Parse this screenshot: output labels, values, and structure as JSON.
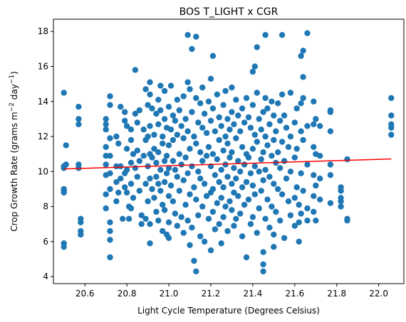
{
  "chart_data": {
    "type": "scatter",
    "title": "BOS T_LIGHT x CGR",
    "xlabel": "Light Cycle Temperature (Degrees Celsius)",
    "ylabel_main": "Crop Growth Rate (grams m",
    "ylabel_sup1": "−2",
    "ylabel_mid": " day",
    "ylabel_sup2": "−1",
    "ylabel_end": ")",
    "xlim": [
      20.45,
      22.12
    ],
    "ylim": [
      3.6,
      18.7
    ],
    "xticks": [
      20.6,
      20.8,
      21.0,
      21.2,
      21.4,
      21.6,
      21.8,
      22.0
    ],
    "xtick_labels": [
      "20.6",
      "20.8",
      "21.0",
      "21.2",
      "21.4",
      "21.6",
      "21.8",
      "22.0"
    ],
    "yticks": [
      4,
      6,
      8,
      10,
      12,
      14,
      16,
      18
    ],
    "ytick_labels": [
      "4",
      "6",
      "8",
      "10",
      "12",
      "14",
      "16",
      "18"
    ],
    "grid": false,
    "point_color": "#1f77b4",
    "trend_color": "#ff0000",
    "trend_line": {
      "x": [
        20.5,
        22.06
      ],
      "y": [
        10.15,
        10.72
      ]
    },
    "points": [
      [
        20.5,
        14.5
      ],
      [
        20.5,
        10.3
      ],
      [
        20.5,
        10.2
      ],
      [
        20.5,
        9.0
      ],
      [
        20.5,
        8.9
      ],
      [
        20.5,
        8.8
      ],
      [
        20.5,
        5.9
      ],
      [
        20.5,
        5.7
      ],
      [
        20.51,
        11.5
      ],
      [
        20.51,
        10.4
      ],
      [
        20.57,
        13.7
      ],
      [
        20.57,
        13.0
      ],
      [
        20.57,
        12.7
      ],
      [
        20.57,
        10.4
      ],
      [
        20.57,
        10.2
      ],
      [
        20.58,
        7.3
      ],
      [
        20.58,
        7.1
      ],
      [
        20.58,
        6.6
      ],
      [
        20.58,
        6.4
      ],
      [
        20.7,
        13.0
      ],
      [
        20.7,
        12.7
      ],
      [
        20.7,
        12.4
      ],
      [
        20.7,
        11.4
      ],
      [
        20.7,
        10.9
      ],
      [
        20.7,
        10.4
      ],
      [
        20.7,
        9.8
      ],
      [
        20.7,
        8.7
      ],
      [
        20.7,
        7.9
      ],
      [
        20.72,
        14.3
      ],
      [
        20.72,
        13.8
      ],
      [
        20.72,
        11.9
      ],
      [
        20.72,
        10.9
      ],
      [
        20.72,
        9.9
      ],
      [
        20.72,
        9.0
      ],
      [
        20.72,
        7.1
      ],
      [
        20.72,
        6.6
      ],
      [
        20.72,
        6.1
      ],
      [
        20.72,
        5.1
      ],
      [
        20.75,
        12.0
      ],
      [
        20.75,
        10.3
      ],
      [
        20.75,
        9.4
      ],
      [
        20.75,
        8.3
      ],
      [
        20.76,
        8.8
      ],
      [
        20.76,
        11.6
      ],
      [
        20.77,
        13.7
      ],
      [
        20.77,
        10.3
      ],
      [
        20.77,
        9.6
      ],
      [
        20.78,
        7.3
      ],
      [
        20.79,
        13.4
      ],
      [
        20.79,
        12.9
      ],
      [
        20.79,
        9.9
      ],
      [
        20.79,
        9.1
      ],
      [
        20.8,
        12.6
      ],
      [
        20.8,
        11.3
      ],
      [
        20.8,
        10.1
      ],
      [
        20.8,
        8.8
      ],
      [
        20.81,
        8.0
      ],
      [
        20.81,
        7.3
      ],
      [
        20.82,
        12.4
      ],
      [
        20.82,
        11.8
      ],
      [
        20.82,
        10.5
      ],
      [
        20.82,
        9.3
      ],
      [
        20.82,
        7.9
      ],
      [
        20.83,
        11.0
      ],
      [
        20.83,
        8.5
      ],
      [
        20.84,
        15.8
      ],
      [
        20.84,
        13.3
      ],
      [
        20.84,
        10.2
      ],
      [
        20.85,
        12.8
      ],
      [
        20.85,
        11.2
      ],
      [
        20.85,
        9.7
      ],
      [
        20.86,
        13.5
      ],
      [
        20.86,
        10.6
      ],
      [
        20.86,
        8.9
      ],
      [
        20.87,
        7.5
      ],
      [
        20.87,
        7.0
      ],
      [
        20.88,
        12.4
      ],
      [
        20.88,
        10.9
      ],
      [
        20.89,
        14.7
      ],
      [
        20.89,
        11.8
      ],
      [
        20.89,
        9.3
      ],
      [
        20.89,
        7.3
      ],
      [
        20.9,
        13.8
      ],
      [
        20.9,
        12.0
      ],
      [
        20.9,
        10.3
      ],
      [
        20.9,
        8.3
      ],
      [
        20.91,
        15.1
      ],
      [
        20.91,
        14.4
      ],
      [
        20.91,
        12.6
      ],
      [
        20.91,
        11.0
      ],
      [
        20.91,
        9.6
      ],
      [
        20.91,
        7.0
      ],
      [
        20.91,
        5.9
      ],
      [
        20.92,
        13.6
      ],
      [
        20.92,
        10.8
      ],
      [
        20.92,
        9.0
      ],
      [
        20.93,
        12.1
      ],
      [
        20.93,
        11.3
      ],
      [
        20.93,
        8.5
      ],
      [
        20.94,
        13.3
      ],
      [
        20.94,
        10.5
      ],
      [
        20.94,
        9.7
      ],
      [
        20.94,
        7.7
      ],
      [
        20.95,
        14.1
      ],
      [
        20.95,
        12.7
      ],
      [
        20.95,
        11.1
      ],
      [
        20.95,
        9.3
      ],
      [
        20.95,
        7.2
      ],
      [
        20.96,
        14.9
      ],
      [
        20.96,
        13.5
      ],
      [
        20.96,
        10.1
      ],
      [
        20.96,
        8.9
      ],
      [
        20.97,
        12.0
      ],
      [
        20.97,
        11.6
      ],
      [
        20.97,
        8.1
      ],
      [
        20.97,
        6.6
      ],
      [
        20.98,
        14.6
      ],
      [
        20.98,
        13.0
      ],
      [
        20.98,
        10.6
      ],
      [
        20.98,
        9.4
      ],
      [
        20.98,
        7.8
      ],
      [
        20.99,
        12.5
      ],
      [
        20.99,
        10.9
      ],
      [
        20.99,
        9.9
      ],
      [
        20.99,
        6.4
      ],
      [
        21.0,
        13.7
      ],
      [
        21.0,
        11.5
      ],
      [
        21.0,
        10.2
      ],
      [
        21.0,
        8.6
      ],
      [
        21.0,
        7.1
      ],
      [
        21.0,
        6.2
      ],
      [
        21.01,
        14.9
      ],
      [
        21.01,
        12.4
      ],
      [
        21.01,
        9.2
      ],
      [
        21.02,
        13.2
      ],
      [
        21.02,
        11.8
      ],
      [
        21.02,
        10.6
      ],
      [
        21.02,
        8.3
      ],
      [
        21.03,
        12.9
      ],
      [
        21.03,
        10.1
      ],
      [
        21.03,
        7.6
      ],
      [
        21.04,
        14.1
      ],
      [
        21.04,
        12.1
      ],
      [
        21.04,
        9.7
      ],
      [
        21.04,
        6.9
      ],
      [
        21.05,
        13.5
      ],
      [
        21.05,
        11.0
      ],
      [
        21.05,
        8.9
      ],
      [
        21.06,
        12.6
      ],
      [
        21.06,
        10.4
      ],
      [
        21.06,
        7.4
      ],
      [
        21.07,
        14.3
      ],
      [
        21.07,
        11.9
      ],
      [
        21.07,
        9.5
      ],
      [
        21.07,
        6.5
      ],
      [
        21.08,
        13.0
      ],
      [
        21.08,
        10.8
      ],
      [
        21.08,
        8.1
      ],
      [
        21.09,
        17.8
      ],
      [
        21.09,
        15.1
      ],
      [
        21.09,
        12.3
      ],
      [
        21.09,
        9.9
      ],
      [
        21.09,
        7.2
      ],
      [
        21.1,
        14.7
      ],
      [
        21.1,
        11.3
      ],
      [
        21.1,
        8.7
      ],
      [
        21.1,
        5.8
      ],
      [
        21.11,
        17.0
      ],
      [
        21.11,
        13.4
      ],
      [
        21.11,
        10.3
      ],
      [
        21.11,
        6.8
      ],
      [
        21.12,
        12.0
      ],
      [
        21.12,
        9.1
      ],
      [
        21.12,
        4.9
      ],
      [
        21.13,
        17.7
      ],
      [
        21.13,
        14.2
      ],
      [
        21.13,
        11.6
      ],
      [
        21.13,
        8.4
      ],
      [
        21.13,
        4.3
      ],
      [
        21.14,
        12.8
      ],
      [
        21.14,
        10.0
      ],
      [
        21.14,
        7.5
      ],
      [
        21.15,
        13.9
      ],
      [
        21.15,
        11.1
      ],
      [
        21.15,
        9.6
      ],
      [
        21.15,
        6.3
      ],
      [
        21.16,
        14.8
      ],
      [
        21.16,
        12.5
      ],
      [
        21.16,
        10.6
      ],
      [
        21.16,
        8.0
      ],
      [
        21.17,
        13.3
      ],
      [
        21.17,
        9.3
      ],
      [
        21.17,
        6.0
      ],
      [
        21.18,
        12.2
      ],
      [
        21.18,
        10.9
      ],
      [
        21.18,
        8.6
      ],
      [
        21.19,
        14.0
      ],
      [
        21.19,
        11.4
      ],
      [
        21.19,
        7.3
      ],
      [
        21.2,
        15.3
      ],
      [
        21.2,
        12.9
      ],
      [
        21.2,
        10.3
      ],
      [
        21.2,
        8.8
      ],
      [
        21.2,
        5.5
      ],
      [
        21.21,
        16.6
      ],
      [
        21.21,
        13.6
      ],
      [
        21.21,
        11.0
      ],
      [
        21.21,
        9.0
      ],
      [
        21.21,
        7.7
      ],
      [
        21.22,
        12.3
      ],
      [
        21.22,
        9.8
      ],
      [
        21.22,
        6.7
      ],
      [
        21.23,
        14.4
      ],
      [
        21.23,
        10.7
      ],
      [
        21.23,
        8.2
      ],
      [
        21.24,
        13.1
      ],
      [
        21.24,
        11.8
      ],
      [
        21.24,
        9.4
      ],
      [
        21.24,
        7.0
      ],
      [
        21.25,
        12.6
      ],
      [
        21.25,
        10.1
      ],
      [
        21.25,
        8.5
      ],
      [
        21.25,
        5.9
      ],
      [
        21.26,
        13.8
      ],
      [
        21.26,
        11.2
      ],
      [
        21.26,
        9.1
      ],
      [
        21.26,
        7.4
      ],
      [
        21.27,
        14.6
      ],
      [
        21.27,
        12.0
      ],
      [
        21.27,
        10.4
      ],
      [
        21.27,
        8.0
      ],
      [
        21.28,
        13.0
      ],
      [
        21.28,
        11.6
      ],
      [
        21.28,
        9.7
      ],
      [
        21.28,
        6.6
      ],
      [
        21.29,
        12.4
      ],
      [
        21.29,
        10.8
      ],
      [
        21.29,
        8.3
      ],
      [
        21.3,
        14.8
      ],
      [
        21.3,
        13.4
      ],
      [
        21.3,
        11.1
      ],
      [
        21.3,
        9.3
      ],
      [
        21.3,
        7.8
      ],
      [
        21.31,
        12.7
      ],
      [
        21.31,
        10.2
      ],
      [
        21.31,
        8.8
      ],
      [
        21.31,
        6.9
      ],
      [
        21.32,
        14.1
      ],
      [
        21.32,
        11.9
      ],
      [
        21.32,
        9.6
      ],
      [
        21.32,
        7.3
      ],
      [
        21.33,
        13.2
      ],
      [
        21.33,
        10.6
      ],
      [
        21.33,
        8.6
      ],
      [
        21.34,
        12.3
      ],
      [
        21.34,
        10.0
      ],
      [
        21.34,
        7.6
      ],
      [
        21.35,
        13.6
      ],
      [
        21.35,
        11.4
      ],
      [
        21.35,
        9.1
      ],
      [
        21.35,
        6.3
      ],
      [
        21.36,
        12.8
      ],
      [
        21.36,
        10.4
      ],
      [
        21.36,
        8.1
      ],
      [
        21.37,
        14.2
      ],
      [
        21.37,
        11.0
      ],
      [
        21.37,
        9.4
      ],
      [
        21.37,
        5.1
      ],
      [
        21.38,
        13.1
      ],
      [
        21.38,
        10.8
      ],
      [
        21.38,
        8.4
      ],
      [
        21.39,
        12.5
      ],
      [
        21.39,
        9.9
      ],
      [
        21.39,
        7.0
      ],
      [
        21.4,
        15.7
      ],
      [
        21.4,
        13.8
      ],
      [
        21.4,
        11.3
      ],
      [
        21.4,
        9.2
      ],
      [
        21.4,
        7.4
      ],
      [
        21.41,
        16.0
      ],
      [
        21.41,
        12.1
      ],
      [
        21.41,
        10.3
      ],
      [
        21.41,
        8.7
      ],
      [
        21.42,
        17.1
      ],
      [
        21.42,
        14.5
      ],
      [
        21.42,
        11.7
      ],
      [
        21.42,
        6.5
      ],
      [
        21.43,
        13.0
      ],
      [
        21.43,
        10.0
      ],
      [
        21.43,
        7.9
      ],
      [
        21.44,
        12.4
      ],
      [
        21.44,
        10.7
      ],
      [
        21.44,
        8.9
      ],
      [
        21.45,
        13.4
      ],
      [
        21.45,
        11.1
      ],
      [
        21.45,
        9.5
      ],
      [
        21.45,
        5.4
      ],
      [
        21.45,
        4.7
      ],
      [
        21.45,
        4.3
      ],
      [
        21.46,
        17.8
      ],
      [
        21.46,
        14.2
      ],
      [
        21.46,
        12.0
      ],
      [
        21.46,
        10.1
      ],
      [
        21.46,
        7.3
      ],
      [
        21.47,
        13.6
      ],
      [
        21.47,
        11.5
      ],
      [
        21.47,
        8.4
      ],
      [
        21.48,
        12.7
      ],
      [
        21.48,
        9.7
      ],
      [
        21.48,
        6.8
      ],
      [
        21.49,
        14.0
      ],
      [
        21.49,
        10.9
      ],
      [
        21.49,
        8.0
      ],
      [
        21.5,
        13.2
      ],
      [
        21.5,
        11.8
      ],
      [
        21.5,
        9.3
      ],
      [
        21.5,
        6.4
      ],
      [
        21.5,
        5.7
      ],
      [
        21.51,
        12.3
      ],
      [
        21.51,
        10.5
      ],
      [
        21.51,
        7.7
      ],
      [
        21.52,
        13.9
      ],
      [
        21.52,
        11.1
      ],
      [
        21.52,
        9.0
      ],
      [
        21.53,
        12.9
      ],
      [
        21.53,
        10.2
      ],
      [
        21.53,
        7.2
      ],
      [
        21.54,
        17.8
      ],
      [
        21.54,
        14.4
      ],
      [
        21.54,
        11.7
      ],
      [
        21.54,
        8.7
      ],
      [
        21.55,
        13.2
      ],
      [
        21.55,
        10.6
      ],
      [
        21.55,
        6.2
      ],
      [
        21.56,
        12.5
      ],
      [
        21.56,
        9.6
      ],
      [
        21.57,
        11.4
      ],
      [
        21.57,
        8.3
      ],
      [
        21.58,
        14.5
      ],
      [
        21.58,
        12.0
      ],
      [
        21.58,
        10.0
      ],
      [
        21.58,
        7.5
      ],
      [
        21.6,
        12.8
      ],
      [
        21.6,
        10.8
      ],
      [
        21.6,
        8.5
      ],
      [
        21.6,
        6.9
      ],
      [
        21.61,
        13.6
      ],
      [
        21.61,
        11.3
      ],
      [
        21.61,
        9.1
      ],
      [
        21.62,
        8.1
      ],
      [
        21.62,
        7.1
      ],
      [
        21.62,
        6.0
      ],
      [
        21.63,
        16.6
      ],
      [
        21.63,
        13.9
      ],
      [
        21.63,
        12.3
      ],
      [
        21.63,
        9.9
      ],
      [
        21.63,
        7.6
      ],
      [
        21.64,
        16.9
      ],
      [
        21.64,
        15.4
      ],
      [
        21.64,
        14.2
      ],
      [
        21.64,
        11.8
      ],
      [
        21.64,
        8.9
      ],
      [
        21.66,
        17.9
      ],
      [
        21.66,
        12.6
      ],
      [
        21.66,
        10.4
      ],
      [
        21.66,
        7.9
      ],
      [
        21.66,
        7.2
      ],
      [
        21.69,
        14.0
      ],
      [
        21.69,
        12.7
      ],
      [
        21.69,
        11.4
      ],
      [
        21.69,
        9.8
      ],
      [
        21.69,
        8.6
      ],
      [
        21.69,
        7.7
      ],
      [
        21.7,
        13.0
      ],
      [
        21.7,
        11.0
      ],
      [
        21.7,
        9.2
      ],
      [
        21.7,
        7.2
      ],
      [
        21.72,
        12.6
      ],
      [
        21.72,
        10.9
      ],
      [
        21.72,
        9.6
      ],
      [
        21.72,
        8.4
      ],
      [
        21.77,
        13.5
      ],
      [
        21.77,
        13.4
      ],
      [
        21.77,
        12.3
      ],
      [
        21.77,
        10.4
      ],
      [
        21.77,
        9.8
      ],
      [
        21.77,
        8.2
      ],
      [
        21.82,
        9.1
      ],
      [
        21.82,
        8.9
      ],
      [
        21.82,
        8.5
      ],
      [
        21.82,
        8.3
      ],
      [
        21.82,
        8.0
      ],
      [
        21.85,
        10.7
      ],
      [
        21.85,
        7.3
      ],
      [
        21.85,
        7.2
      ],
      [
        22.06,
        14.2
      ],
      [
        22.06,
        13.2
      ],
      [
        22.06,
        12.7
      ],
      [
        22.06,
        12.5
      ],
      [
        22.06,
        12.1
      ]
    ]
  }
}
